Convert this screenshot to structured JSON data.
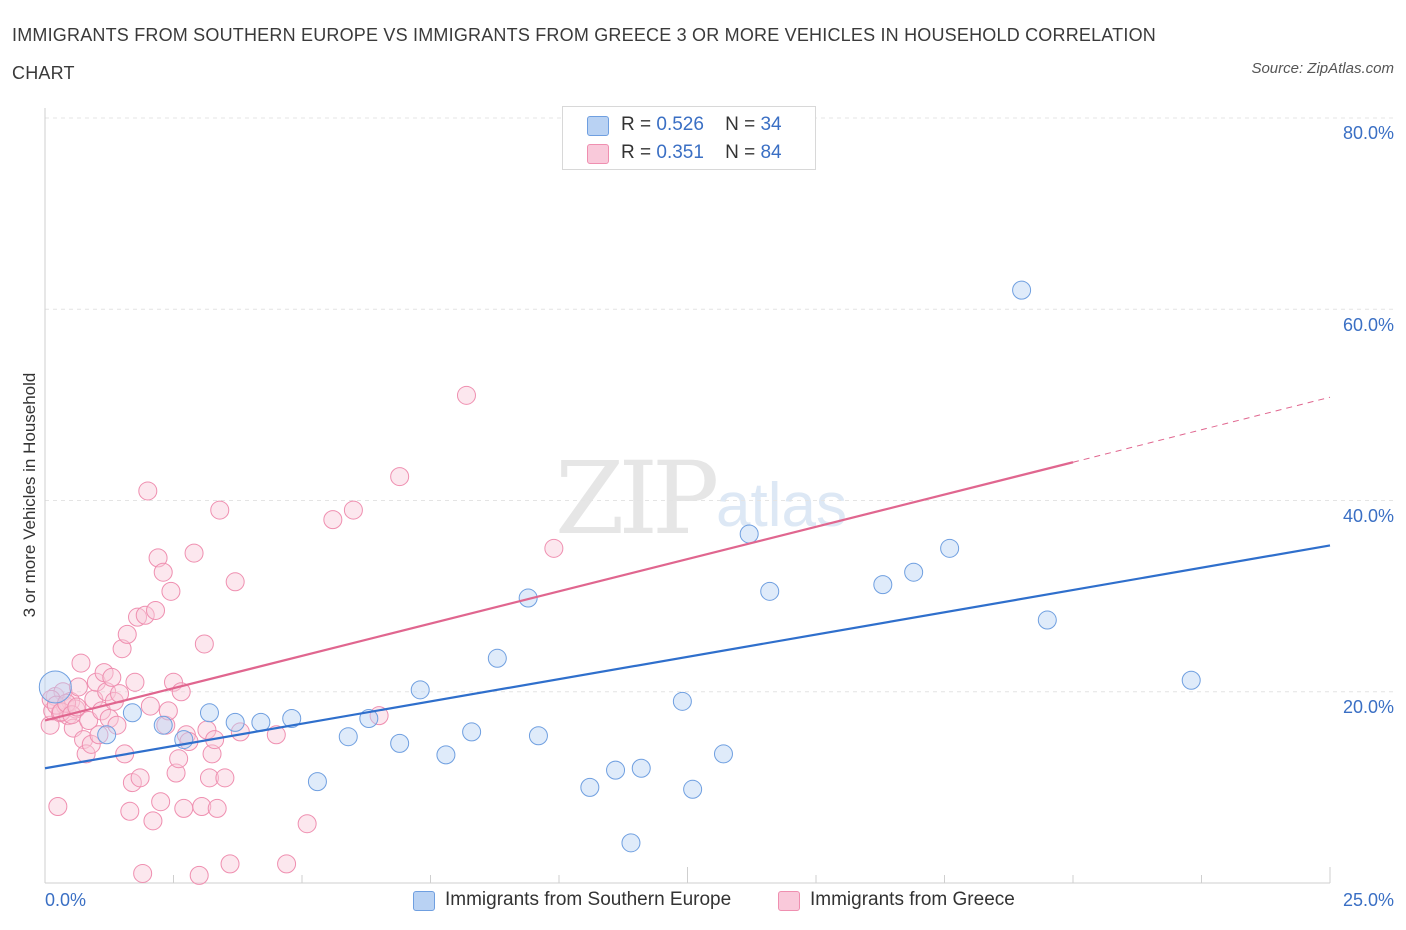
{
  "title": "IMMIGRANTS FROM SOUTHERN EUROPE VS IMMIGRANTS FROM GREECE 3 OR MORE VEHICLES IN HOUSEHOLD CORRELATION CHART",
  "source": "Source: ZipAtlas.com",
  "watermark": {
    "zip": "ZIP",
    "atlas": "atlas"
  },
  "colors": {
    "blue": "#6f9fe0",
    "blue_fill": "#b9d2f3",
    "pink": "#ef8fb0",
    "pink_fill": "#f9c9da",
    "blue_line": "#2f6fcc",
    "pink_line": "#e0668f",
    "axis_text": "#3a6fc4"
  },
  "legend": {
    "rows": [
      {
        "r_label": "R =",
        "r_value": "0.526",
        "n_label": "N =",
        "n_value": "34"
      },
      {
        "r_label": "R =",
        "r_value": "0.351",
        "n_label": "N =",
        "n_value": "84"
      }
    ]
  },
  "bottom_legend": [
    "Immigrants from Southern Europe",
    "Immigrants from Greece"
  ],
  "chart_data": {
    "type": "scatter",
    "title": "IMMIGRANTS FROM SOUTHERN EUROPE VS IMMIGRANTS FROM GREECE 3 OR MORE VEHICLES IN HOUSEHOLD CORRELATION CHART",
    "xlabel": "",
    "ylabel": "3 or more Vehicles in Household",
    "xlim": [
      0,
      25
    ],
    "ylim": [
      0,
      80
    ],
    "x_tick_labels": [
      "0.0%",
      "25.0%"
    ],
    "y_tick_labels": [
      "20.0%",
      "40.0%",
      "60.0%",
      "80.0%"
    ],
    "y_ticks": [
      20,
      40,
      60,
      80
    ],
    "grid": true,
    "legend_position": "top-center",
    "series": [
      {
        "name": "Immigrants from Southern Europe",
        "color": "#6f9fe0",
        "trend": {
          "x": [
            0,
            25
          ],
          "y": [
            12.0,
            35.3
          ]
        },
        "points": [
          [
            0.2,
            20.5
          ],
          [
            1.2,
            15.5
          ],
          [
            1.7,
            17.8
          ],
          [
            2.3,
            16.5
          ],
          [
            2.7,
            15.0
          ],
          [
            3.2,
            17.8
          ],
          [
            3.7,
            16.8
          ],
          [
            4.2,
            16.8
          ],
          [
            4.8,
            17.2
          ],
          [
            5.3,
            10.6
          ],
          [
            5.9,
            15.3
          ],
          [
            6.3,
            17.2
          ],
          [
            6.9,
            14.6
          ],
          [
            7.3,
            20.2
          ],
          [
            7.8,
            13.4
          ],
          [
            8.3,
            15.8
          ],
          [
            8.8,
            23.5
          ],
          [
            9.4,
            29.8
          ],
          [
            9.6,
            15.4
          ],
          [
            10.6,
            10.0
          ],
          [
            11.1,
            11.8
          ],
          [
            11.4,
            4.2
          ],
          [
            11.6,
            12.0
          ],
          [
            12.4,
            19.0
          ],
          [
            12.6,
            9.8
          ],
          [
            13.2,
            13.5
          ],
          [
            13.7,
            36.5
          ],
          [
            14.1,
            30.5
          ],
          [
            16.3,
            31.2
          ],
          [
            16.9,
            32.5
          ],
          [
            17.6,
            35.0
          ],
          [
            19.0,
            62.0
          ],
          [
            19.5,
            27.5
          ],
          [
            22.3,
            21.2
          ]
        ]
      },
      {
        "name": "Immigrants from Greece",
        "color": "#ef8fb0",
        "trend": {
          "x": [
            0,
            20
          ],
          "y": [
            17.0,
            44.0
          ]
        },
        "trend_dashed": {
          "x": [
            20,
            25
          ],
          "y": [
            44.0,
            50.8
          ]
        },
        "points": [
          [
            0.1,
            16.5
          ],
          [
            0.15,
            18.0
          ],
          [
            0.2,
            19.5
          ],
          [
            0.25,
            8.0
          ],
          [
            0.3,
            17.8
          ],
          [
            0.35,
            20.0
          ],
          [
            0.4,
            18.5
          ],
          [
            0.45,
            17.5
          ],
          [
            0.5,
            19.0
          ],
          [
            0.55,
            16.2
          ],
          [
            0.6,
            18.2
          ],
          [
            0.65,
            20.5
          ],
          [
            0.7,
            23.0
          ],
          [
            0.75,
            15.0
          ],
          [
            0.8,
            13.5
          ],
          [
            0.85,
            17.0
          ],
          [
            0.9,
            14.5
          ],
          [
            0.95,
            19.2
          ],
          [
            1.0,
            21.0
          ],
          [
            1.05,
            15.5
          ],
          [
            1.1,
            18.0
          ],
          [
            1.15,
            22.0
          ],
          [
            1.2,
            20.0
          ],
          [
            1.25,
            17.2
          ],
          [
            1.3,
            21.5
          ],
          [
            1.35,
            19.0
          ],
          [
            1.4,
            16.5
          ],
          [
            1.45,
            19.8
          ],
          [
            1.5,
            24.5
          ],
          [
            1.55,
            13.5
          ],
          [
            1.6,
            26.0
          ],
          [
            1.65,
            7.5
          ],
          [
            1.7,
            10.5
          ],
          [
            1.75,
            21.0
          ],
          [
            1.8,
            27.8
          ],
          [
            1.85,
            11.0
          ],
          [
            1.9,
            1.0
          ],
          [
            1.95,
            28.0
          ],
          [
            2.0,
            41.0
          ],
          [
            2.05,
            18.5
          ],
          [
            2.1,
            6.5
          ],
          [
            2.15,
            28.5
          ],
          [
            2.2,
            34.0
          ],
          [
            2.25,
            8.5
          ],
          [
            2.3,
            32.5
          ],
          [
            2.35,
            16.5
          ],
          [
            2.4,
            18.0
          ],
          [
            2.45,
            30.5
          ],
          [
            2.5,
            21.0
          ],
          [
            2.55,
            11.5
          ],
          [
            2.6,
            13.0
          ],
          [
            2.65,
            20.0
          ],
          [
            2.7,
            7.8
          ],
          [
            2.75,
            15.5
          ],
          [
            2.8,
            14.8
          ],
          [
            2.9,
            34.5
          ],
          [
            3.0,
            0.8
          ],
          [
            3.05,
            8.0
          ],
          [
            3.1,
            25.0
          ],
          [
            3.15,
            16.0
          ],
          [
            3.2,
            11.0
          ],
          [
            3.25,
            13.5
          ],
          [
            3.3,
            15.0
          ],
          [
            3.35,
            7.8
          ],
          [
            3.4,
            39.0
          ],
          [
            3.5,
            11.0
          ],
          [
            3.6,
            2.0
          ],
          [
            3.7,
            31.5
          ],
          [
            3.8,
            15.8
          ],
          [
            4.5,
            15.5
          ],
          [
            4.7,
            2.0
          ],
          [
            5.1,
            6.2
          ],
          [
            5.6,
            38.0
          ],
          [
            6.0,
            39.0
          ],
          [
            6.5,
            17.5
          ],
          [
            6.9,
            42.5
          ],
          [
            8.2,
            51.0
          ],
          [
            9.9,
            35.0
          ],
          [
            0.12,
            19.2
          ],
          [
            0.22,
            18.6
          ],
          [
            0.32,
            17.9
          ],
          [
            0.42,
            18.8
          ],
          [
            0.52,
            17.6
          ],
          [
            0.62,
            18.4
          ]
        ]
      }
    ]
  }
}
